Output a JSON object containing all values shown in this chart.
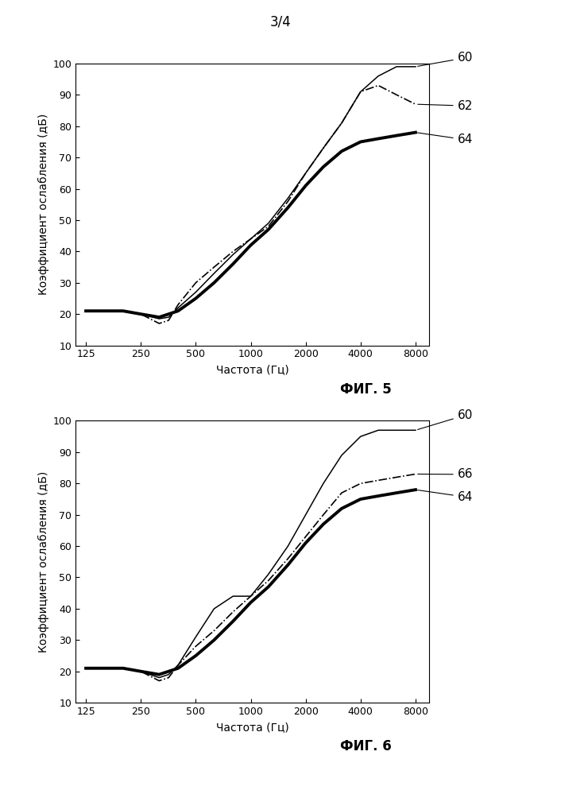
{
  "page_label": "3/4",
  "fig5_label": "ФИГ. 5",
  "fig6_label": "ФИГ. 6",
  "xlabel": "Частота (Гц)",
  "ylabel": "Коэффициент ослабления (дБ)",
  "xtick_labels": [
    "125",
    "250",
    "500",
    "1000",
    "2000",
    "4000",
    "8000"
  ],
  "xtick_values": [
    125,
    250,
    500,
    1000,
    2000,
    4000,
    8000
  ],
  "ylim": [
    10,
    100
  ],
  "yticks": [
    10,
    20,
    30,
    40,
    50,
    60,
    70,
    80,
    90,
    100
  ],
  "fig5_curve60_x": [
    125,
    160,
    200,
    250,
    315,
    355,
    400,
    500,
    630,
    800,
    1000,
    1250,
    1600,
    2000,
    2500,
    3150,
    4000,
    5000,
    6300,
    8000
  ],
  "fig5_curve60_y": [
    21,
    21,
    21,
    20,
    18.5,
    19,
    22,
    27,
    33,
    39,
    44,
    49,
    57,
    65,
    73,
    81,
    91,
    96,
    99,
    99
  ],
  "fig5_curve62_x": [
    125,
    160,
    200,
    250,
    315,
    355,
    400,
    500,
    630,
    800,
    1000,
    1250,
    1600,
    2000,
    2500,
    3150,
    4000,
    5000,
    6300,
    8000
  ],
  "fig5_curve62_y": [
    21,
    21,
    21,
    20,
    17,
    18,
    23,
    30,
    35,
    40,
    44,
    48,
    56,
    65,
    73,
    81,
    91,
    93,
    90,
    87
  ],
  "fig5_curve64_x": [
    125,
    160,
    200,
    250,
    315,
    355,
    400,
    500,
    630,
    800,
    1000,
    1250,
    1600,
    2000,
    2500,
    3150,
    4000,
    5000,
    6300,
    8000
  ],
  "fig5_curve64_y": [
    21,
    21,
    21,
    20,
    19,
    20,
    21,
    25,
    30,
    36,
    42,
    47,
    54,
    61,
    67,
    72,
    75,
    76,
    77,
    78
  ],
  "fig6_curve60_x": [
    125,
    160,
    200,
    250,
    315,
    355,
    400,
    500,
    630,
    800,
    1000,
    1250,
    1600,
    2000,
    2500,
    3150,
    4000,
    5000,
    6300,
    8000
  ],
  "fig6_curve60_y": [
    21,
    21,
    21,
    20,
    18,
    19,
    22,
    31,
    40,
    44,
    44,
    51,
    60,
    70,
    80,
    89,
    95,
    97,
    97,
    97
  ],
  "fig6_curve66_x": [
    125,
    160,
    200,
    250,
    315,
    355,
    400,
    500,
    630,
    800,
    1000,
    1250,
    1600,
    2000,
    2500,
    3150,
    4000,
    5000,
    6300,
    8000
  ],
  "fig6_curve66_y": [
    21,
    21,
    21,
    20,
    17,
    18,
    22,
    28,
    33,
    39,
    44,
    49,
    56,
    63,
    70,
    77,
    80,
    81,
    82,
    83
  ],
  "fig6_curve64_x": [
    125,
    160,
    200,
    250,
    315,
    355,
    400,
    500,
    630,
    800,
    1000,
    1250,
    1600,
    2000,
    2500,
    3150,
    4000,
    5000,
    6300,
    8000
  ],
  "fig6_curve64_y": [
    21,
    21,
    21,
    20,
    19,
    20,
    21,
    25,
    30,
    36,
    42,
    47,
    54,
    61,
    67,
    72,
    75,
    76,
    77,
    78
  ],
  "background_color": "#ffffff",
  "line_color": "#000000",
  "thick_lw": 2.8,
  "thin_lw": 1.1,
  "dash_lw": 1.2
}
